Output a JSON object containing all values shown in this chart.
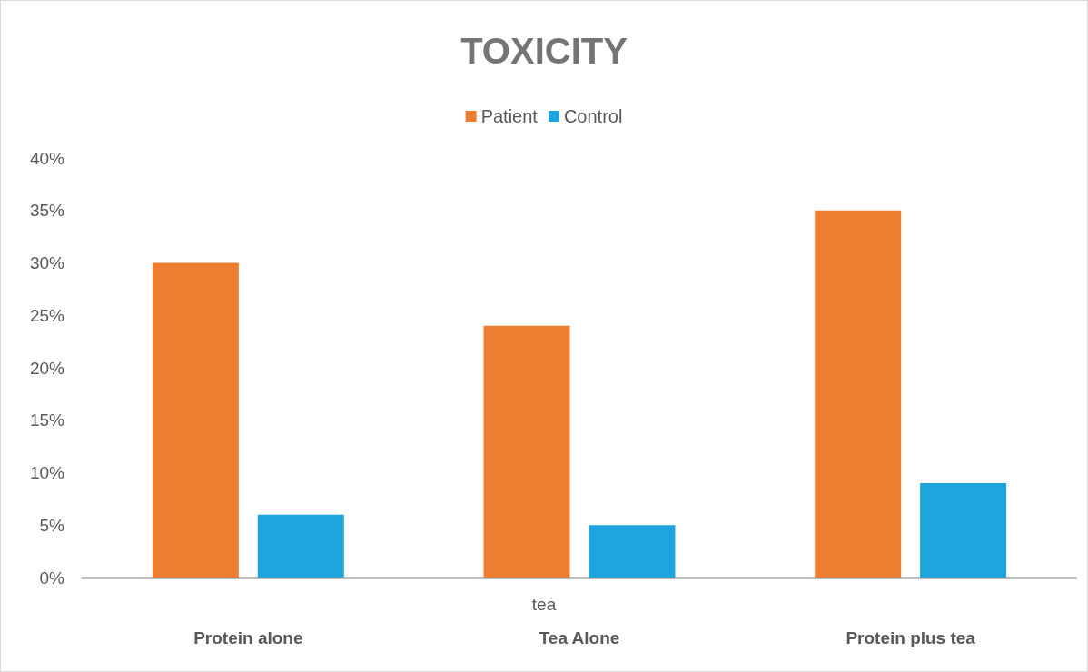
{
  "chart_data": {
    "type": "bar",
    "title": "TOXICITY",
    "categories": [
      "Protein alone",
      "Tea Alone",
      "Protein plus tea"
    ],
    "series": [
      {
        "name": "Patient",
        "color": "#ed7d31",
        "values": [
          30,
          24,
          35
        ]
      },
      {
        "name": "Control",
        "color": "#1ea5de",
        "values": [
          6,
          5,
          9
        ]
      }
    ],
    "ylim": [
      0,
      40
    ],
    "yticks": [
      {
        "value": 0,
        "label": "0%"
      },
      {
        "value": 5,
        "label": "5%"
      },
      {
        "value": 10,
        "label": "10%"
      },
      {
        "value": 15,
        "label": "15%"
      },
      {
        "value": 20,
        "label": "20%"
      },
      {
        "value": 25,
        "label": "25%"
      },
      {
        "value": 30,
        "label": "30%"
      },
      {
        "value": 35,
        "label": "35%"
      },
      {
        "value": 40,
        "label": "40%"
      }
    ],
    "annotations": [
      "tea"
    ],
    "grid": false,
    "legend": "top"
  }
}
